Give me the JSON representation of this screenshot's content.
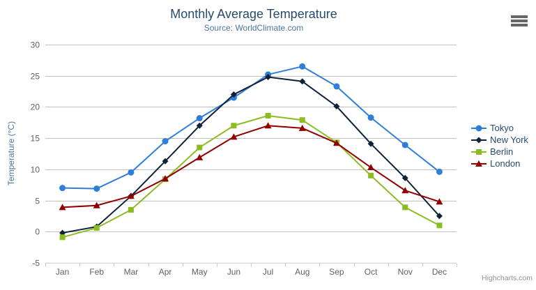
{
  "chart_data": {
    "type": "line",
    "title": "Monthly Average Temperature",
    "subtitle": "Source: WorldClimate.com",
    "yaxis_title": "Temperature (°C)",
    "xlabel": "",
    "ylabel": "Temperature (°C)",
    "categories": [
      "Jan",
      "Feb",
      "Mar",
      "Apr",
      "May",
      "Jun",
      "Jul",
      "Aug",
      "Sep",
      "Oct",
      "Nov",
      "Dec"
    ],
    "ylim": [
      -5,
      30
    ],
    "ytick_interval": 5,
    "grid": true,
    "legend_position": "right-middle",
    "series": [
      {
        "name": "Tokyo",
        "color": "#2f7ed8",
        "marker": "circle",
        "values": [
          7.0,
          6.9,
          9.5,
          14.5,
          18.2,
          21.5,
          25.2,
          26.5,
          23.3,
          18.3,
          13.9,
          9.6
        ]
      },
      {
        "name": "New York",
        "color": "#0d233a",
        "marker": "diamond",
        "values": [
          -0.2,
          0.8,
          5.7,
          11.3,
          17.0,
          22.0,
          24.8,
          24.1,
          20.1,
          14.1,
          8.6,
          2.5
        ]
      },
      {
        "name": "Berlin",
        "color": "#8bbc21",
        "marker": "square",
        "values": [
          -0.9,
          0.6,
          3.5,
          8.4,
          13.5,
          17.0,
          18.6,
          17.9,
          14.3,
          9.0,
          3.9,
          1.0
        ]
      },
      {
        "name": "London",
        "color": "#910000",
        "marker": "triangle",
        "values": [
          3.9,
          4.2,
          5.7,
          8.5,
          11.9,
          15.2,
          17.0,
          16.6,
          14.2,
          10.3,
          6.6,
          4.8
        ]
      }
    ],
    "credits": "Highcharts.com",
    "ui_colors": {
      "grid_line": "#c0c0c0",
      "x_axis_line": "#c0d0e0",
      "axis_label": "#606060",
      "title": "#274b6d",
      "subtitle": "#4d759e",
      "legend_text": "#274b6d",
      "credits": "#909090",
      "menu_icon": "#666666"
    }
  },
  "menu": {
    "icon": "hamburger-icon"
  }
}
